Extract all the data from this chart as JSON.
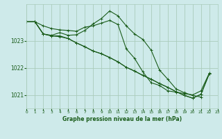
{
  "bg_color": "#ceeaea",
  "grid_color": "#aaccbb",
  "line_color": "#1a5c1a",
  "title": "Graphe pression niveau de la mer (hPa)",
  "xlim": [
    0,
    23
  ],
  "ylim": [
    1020.5,
    1024.35
  ],
  "yticks": [
    1021,
    1022,
    1023
  ],
  "xticks": [
    0,
    1,
    2,
    3,
    4,
    5,
    6,
    7,
    8,
    9,
    10,
    11,
    12,
    13,
    14,
    15,
    16,
    17,
    18,
    19,
    20,
    21,
    22,
    23
  ],
  "series": [
    [
      1023.7,
      1023.7,
      1023.55,
      1023.45,
      1023.4,
      1023.38,
      1023.35,
      1023.5,
      1023.55,
      1023.65,
      1023.75,
      1023.6,
      1022.7,
      1022.35,
      1021.85,
      1021.45,
      1021.35,
      1021.15,
      1021.1,
      1021.05,
      1021.0,
      1021.15,
      1021.8,
      null
    ],
    [
      1023.7,
      1023.7,
      1023.25,
      1023.2,
      1023.3,
      1023.2,
      1023.22,
      1023.38,
      1023.62,
      1023.82,
      1024.1,
      1023.92,
      1023.55,
      1023.25,
      1023.05,
      1022.65,
      1021.92,
      1021.58,
      1021.22,
      1021.08,
      1020.98,
      1020.92,
      null,
      null
    ],
    [
      1023.7,
      1023.7,
      1023.25,
      1023.18,
      1023.18,
      1023.08,
      1022.92,
      1022.78,
      1022.62,
      1022.52,
      1022.38,
      1022.22,
      1022.02,
      1021.88,
      1021.72,
      1021.58,
      1021.42,
      1021.28,
      1021.12,
      1020.98,
      1020.88,
      1021.02,
      1021.78,
      null
    ],
    [
      1023.7,
      1023.7,
      1023.25,
      1023.18,
      1023.15,
      1023.08,
      1022.92,
      1022.78,
      1022.62,
      1022.52,
      1022.38,
      1022.22,
      1022.02,
      1021.88,
      1021.72,
      1021.58,
      1021.42,
      1021.28,
      1021.12,
      1020.98,
      1020.88,
      1021.02,
      1021.78,
      null
    ]
  ],
  "figsize": [
    3.2,
    2.0
  ],
  "dpi": 100
}
